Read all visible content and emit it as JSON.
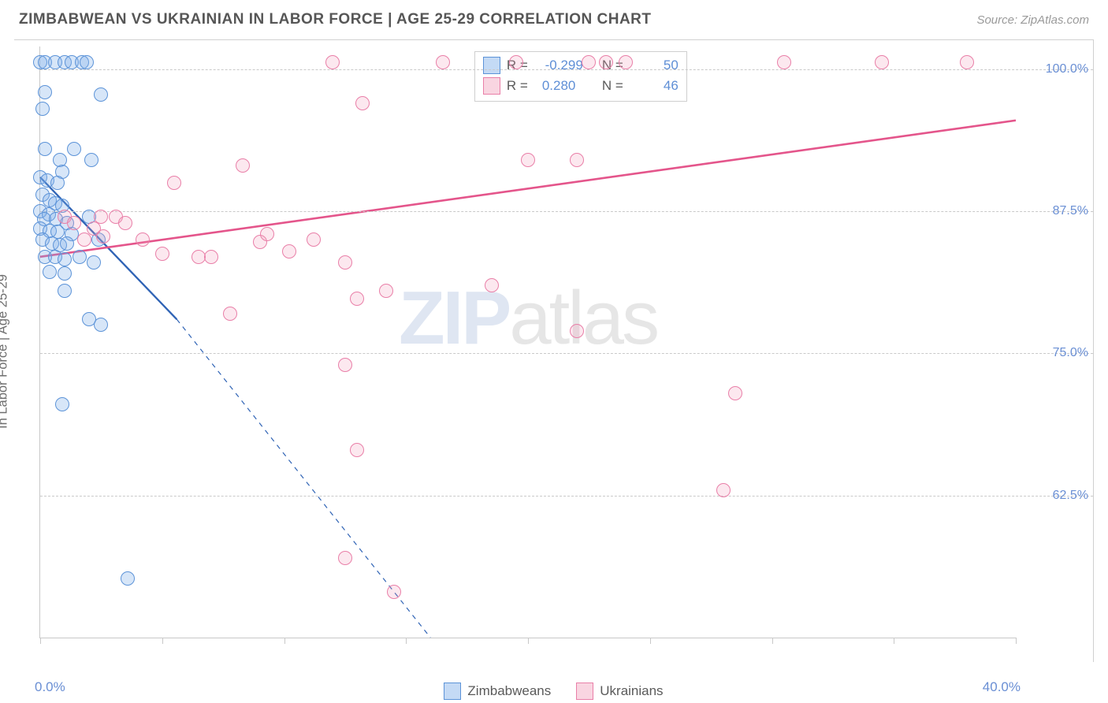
{
  "title": "ZIMBABWEAN VS UKRAINIAN IN LABOR FORCE | AGE 25-29 CORRELATION CHART",
  "source": "Source: ZipAtlas.com",
  "y_axis_label": "In Labor Force | Age 25-29",
  "watermark_a": "ZIP",
  "watermark_b": "atlas",
  "chart": {
    "type": "scatter",
    "xlim": [
      0,
      40
    ],
    "ylim": [
      50,
      102
    ],
    "x_ticks_step": 5,
    "y_grid": [
      62.5,
      75.0,
      87.5,
      100.0
    ],
    "y_tick_labels": [
      "62.5%",
      "75.0%",
      "87.5%",
      "100.0%"
    ],
    "x_min_label": "0.0%",
    "x_max_label": "40.0%",
    "background_color": "#ffffff",
    "grid_color": "#c9c9c9",
    "series": [
      {
        "name": "Zimbabweans",
        "color_fill": "rgba(124,172,232,0.30)",
        "color_stroke": "#5c93d8",
        "marker_radius_px": 9,
        "R": "-0.299",
        "N": "50",
        "trend": {
          "x1": 0.0,
          "y1": 90.5,
          "x2": 5.6,
          "y2": 78.0,
          "dash_to_x": 16.0,
          "dash_to_y": 50.0,
          "stroke": "#2f63b5",
          "width": 2.3
        },
        "points": [
          [
            0.0,
            100.6
          ],
          [
            0.2,
            100.6
          ],
          [
            0.6,
            100.6
          ],
          [
            1.0,
            100.6
          ],
          [
            1.3,
            100.6
          ],
          [
            1.7,
            100.6
          ],
          [
            1.9,
            100.6
          ],
          [
            0.2,
            98.0
          ],
          [
            2.5,
            97.8
          ],
          [
            0.1,
            96.5
          ],
          [
            0.2,
            93.0
          ],
          [
            0.8,
            92.0
          ],
          [
            1.4,
            93.0
          ],
          [
            2.1,
            92.0
          ],
          [
            0.0,
            90.5
          ],
          [
            0.3,
            90.2
          ],
          [
            0.9,
            91.0
          ],
          [
            0.7,
            90.0
          ],
          [
            0.1,
            89.0
          ],
          [
            0.4,
            88.5
          ],
          [
            0.6,
            88.2
          ],
          [
            0.9,
            88.0
          ],
          [
            0.0,
            87.5
          ],
          [
            0.35,
            87.2
          ],
          [
            0.15,
            86.8
          ],
          [
            0.65,
            86.8
          ],
          [
            1.1,
            86.5
          ],
          [
            0.0,
            86.0
          ],
          [
            0.4,
            85.8
          ],
          [
            0.7,
            85.7
          ],
          [
            1.3,
            85.5
          ],
          [
            0.1,
            85.0
          ],
          [
            0.5,
            84.7
          ],
          [
            0.8,
            84.5
          ],
          [
            1.1,
            84.7
          ],
          [
            0.2,
            83.5
          ],
          [
            0.6,
            83.5
          ],
          [
            1.0,
            83.3
          ],
          [
            1.6,
            83.5
          ],
          [
            0.4,
            82.2
          ],
          [
            1.0,
            82.0
          ],
          [
            2.0,
            87.0
          ],
          [
            2.4,
            85.0
          ],
          [
            2.2,
            83.0
          ],
          [
            1.0,
            80.5
          ],
          [
            2.0,
            78.0
          ],
          [
            2.5,
            77.5
          ],
          [
            0.9,
            70.5
          ],
          [
            3.6,
            55.2
          ]
        ]
      },
      {
        "name": "Ukrainians",
        "color_fill": "rgba(240,150,180,0.22)",
        "color_stroke": "#e97fa8",
        "marker_radius_px": 9,
        "R": "0.280",
        "N": "46",
        "trend": {
          "x1": 0.0,
          "y1": 83.5,
          "x2": 40.0,
          "y2": 95.5,
          "stroke": "#e4558b",
          "width": 2.6
        },
        "points": [
          [
            12.0,
            100.6
          ],
          [
            16.5,
            100.6
          ],
          [
            19.5,
            100.6
          ],
          [
            22.5,
            100.6
          ],
          [
            23.2,
            100.6
          ],
          [
            24.0,
            100.6
          ],
          [
            30.5,
            100.6
          ],
          [
            34.5,
            100.6
          ],
          [
            38.0,
            100.6
          ],
          [
            13.2,
            97.0
          ],
          [
            20.0,
            92.0
          ],
          [
            22.0,
            92.0
          ],
          [
            5.5,
            90.0
          ],
          [
            8.3,
            91.5
          ],
          [
            1.0,
            87.0
          ],
          [
            1.4,
            86.5
          ],
          [
            2.5,
            87.0
          ],
          [
            2.2,
            86.0
          ],
          [
            3.1,
            87.0
          ],
          [
            3.5,
            86.5
          ],
          [
            1.8,
            85.0
          ],
          [
            2.6,
            85.3
          ],
          [
            4.2,
            85.0
          ],
          [
            5.0,
            83.8
          ],
          [
            6.5,
            83.5
          ],
          [
            7.0,
            83.5
          ],
          [
            9.0,
            84.8
          ],
          [
            9.3,
            85.5
          ],
          [
            10.2,
            84.0
          ],
          [
            11.2,
            85.0
          ],
          [
            12.5,
            83.0
          ],
          [
            13.0,
            79.8
          ],
          [
            14.2,
            80.5
          ],
          [
            7.8,
            78.5
          ],
          [
            18.5,
            81.0
          ],
          [
            22.0,
            77.0
          ],
          [
            12.5,
            74.0
          ],
          [
            28.5,
            71.5
          ],
          [
            28.0,
            63.0
          ],
          [
            13.0,
            66.5
          ],
          [
            12.5,
            57.0
          ],
          [
            14.5,
            54.0
          ]
        ]
      }
    ]
  },
  "legend": {
    "series1": "Zimbabweans",
    "series2": "Ukrainians"
  },
  "stats_labels": {
    "R": "R =",
    "N": "N ="
  }
}
